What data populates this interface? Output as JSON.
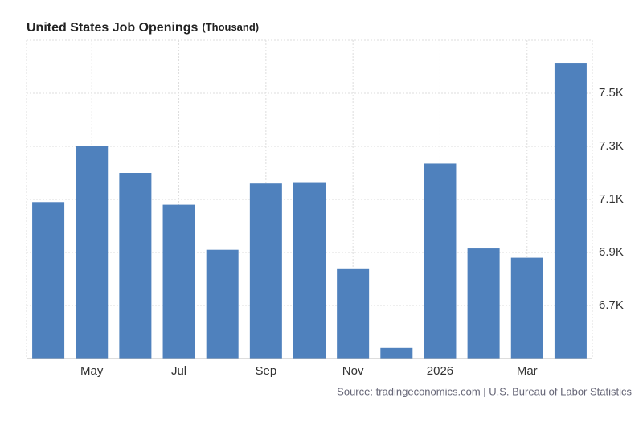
{
  "chart_data": {
    "type": "bar",
    "title": "United States Job Openings",
    "unit": "(Thousand)",
    "source": "Source: tradingeconomics.com | U.S. Bureau of Labor Statistics",
    "categories": [
      null,
      "May",
      null,
      "Jul",
      null,
      "Sep",
      null,
      "Nov",
      null,
      "2026",
      null,
      "Mar",
      null
    ],
    "values": [
      7090,
      7300,
      7200,
      7080,
      6910,
      7160,
      7165,
      6840,
      6540,
      7235,
      6915,
      6880,
      7615
    ],
    "color": "#4f81bd",
    "ylim": [
      6500,
      7700
    ],
    "yticks": [
      {
        "value": 6700,
        "label": "6.7K"
      },
      {
        "value": 6900,
        "label": "6.9K"
      },
      {
        "value": 7100,
        "label": "7.1K"
      },
      {
        "value": 7300,
        "label": "7.3K"
      },
      {
        "value": 7500,
        "label": "7.5K"
      }
    ],
    "grid": true
  }
}
